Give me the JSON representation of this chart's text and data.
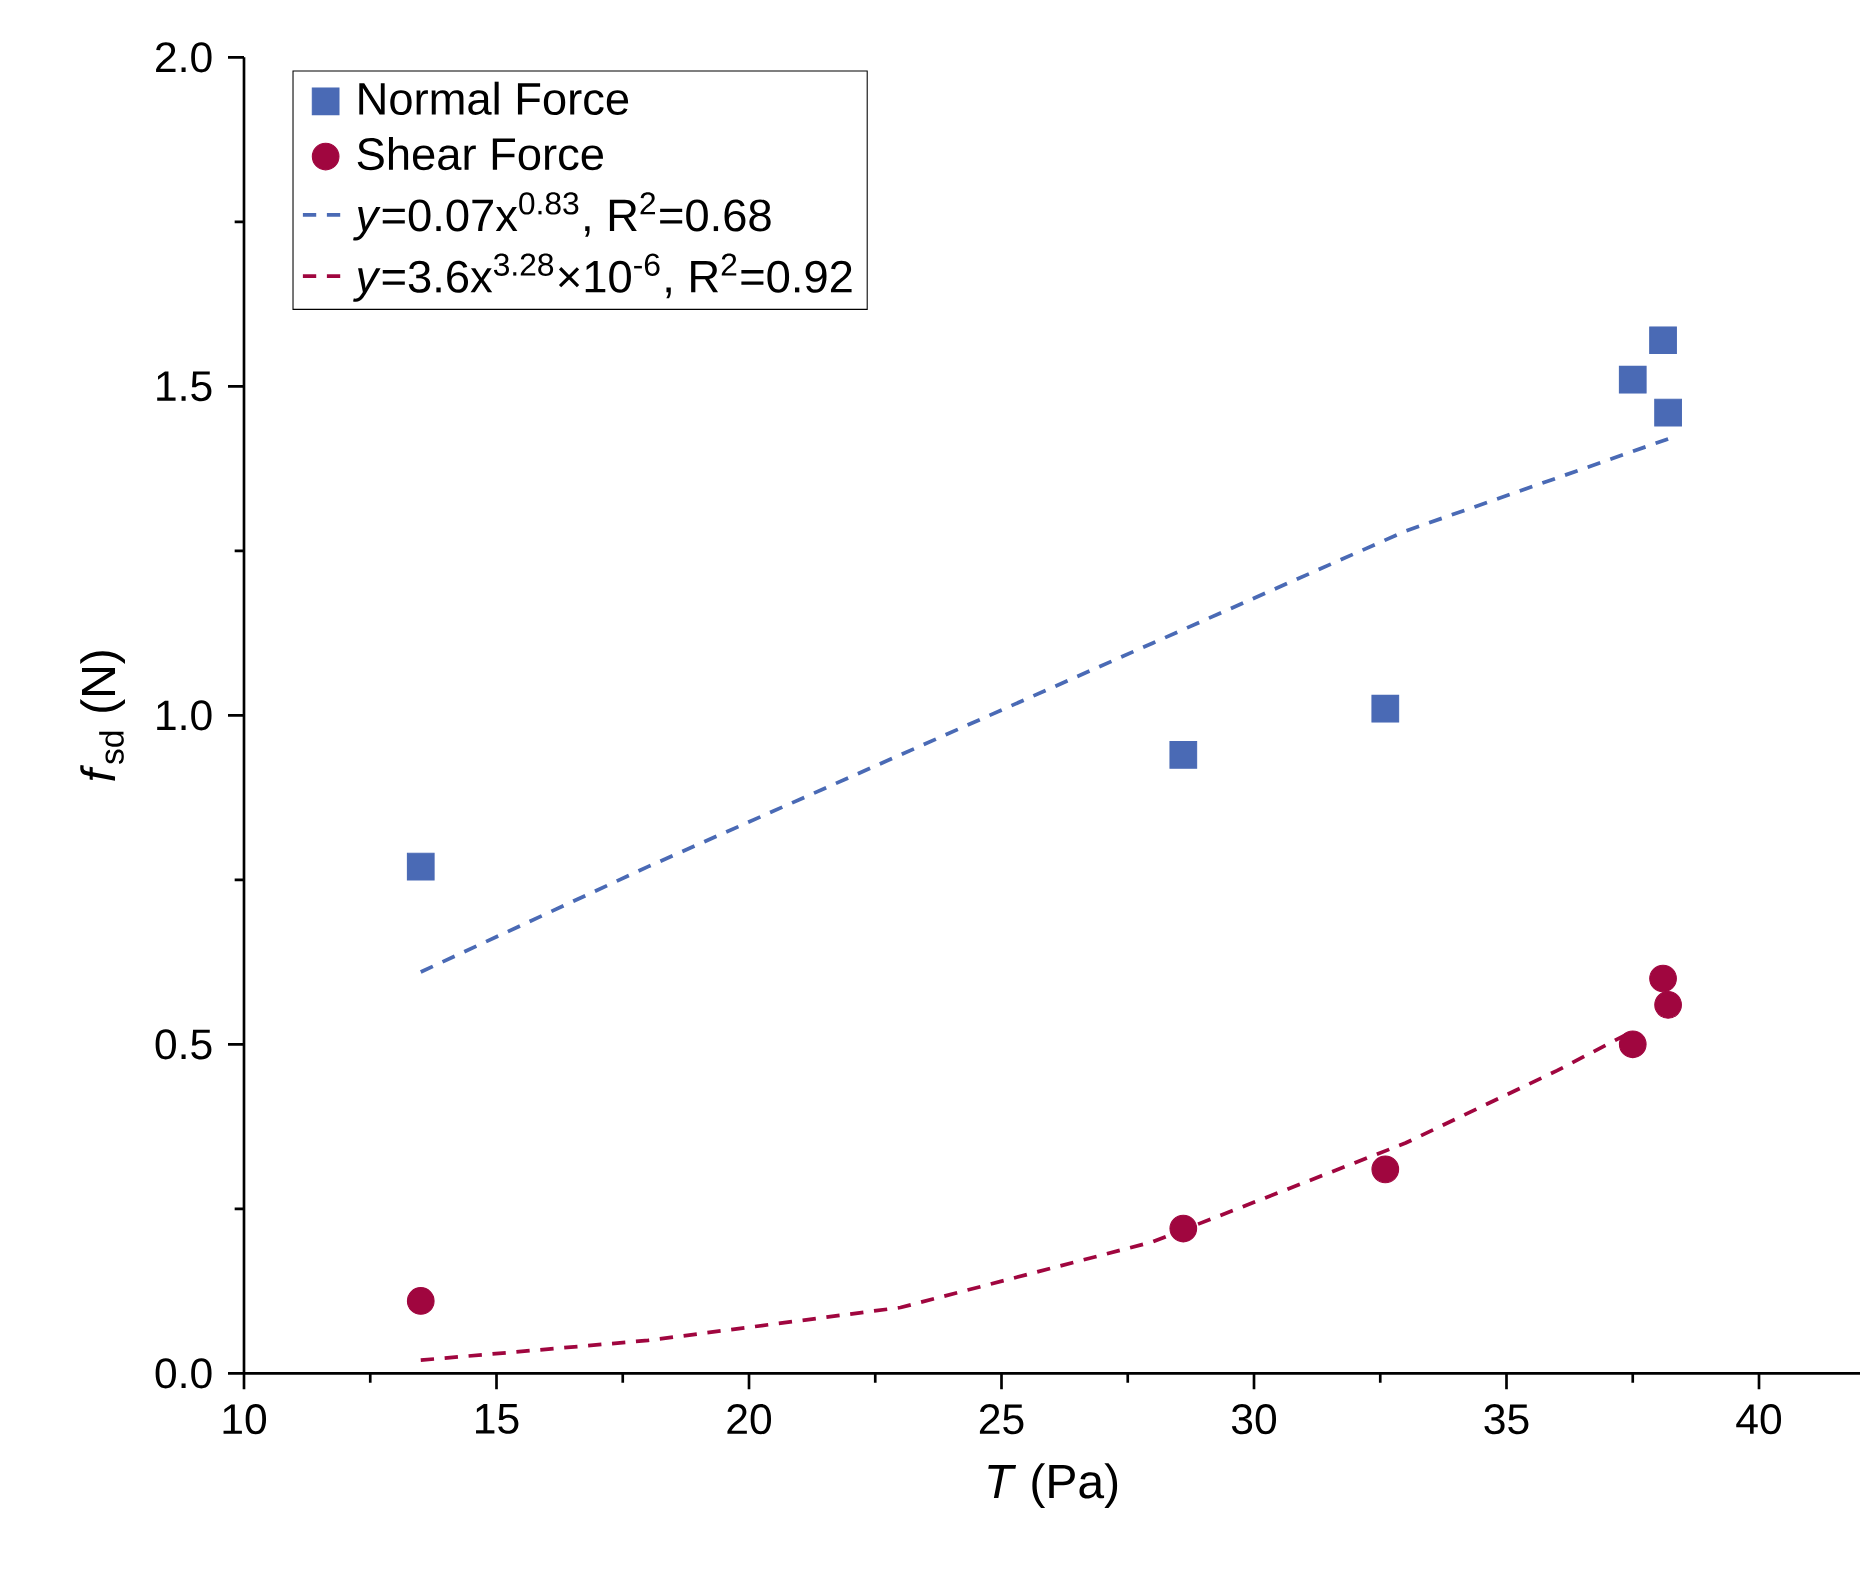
{
  "chart_data": {
    "type": "scatter",
    "xlabel": "*T* (Pa)",
    "ylabel": "*f*$_{sd}$ (N)",
    "xlim": [
      10,
      42
    ],
    "ylim": [
      0,
      2
    ],
    "xticks": [
      10,
      15,
      20,
      25,
      30,
      35,
      40
    ],
    "yticks": [
      {
        "value": 0,
        "label": "0.0"
      },
      0.5,
      {
        "value": 1,
        "label": "1.0"
      },
      1.5,
      {
        "value": 2,
        "label": "2.0"
      }
    ],
    "grid": false,
    "legend": "top left",
    "series": [
      {
        "name": "Normal Force",
        "marker": "square",
        "color": "#4a6ab5",
        "x": [
          13.5,
          28.6,
          32.6,
          37.5,
          38.1,
          38.2
        ],
        "values": [
          0.77,
          0.94,
          1.01,
          1.51,
          1.57,
          1.46
        ]
      },
      {
        "name": "Shear Force",
        "marker": "circle",
        "color": "#a0063f",
        "x": [
          13.5,
          28.6,
          32.6,
          37.5,
          38.1,
          38.2
        ],
        "values": [
          0.11,
          0.22,
          0.31,
          0.5,
          0.6,
          0.56
        ]
      },
      {
        "name": "*y*=0.07x$^{0.83}$, R$^{2}$=0.68",
        "type": "line",
        "line_style": "dashed",
        "color": "#4a6ab5",
        "x": [
          13.5,
          18,
          23,
          28,
          33,
          38.2
        ],
        "values": [
          0.61,
          0.77,
          0.94,
          1.11,
          1.28,
          1.42
        ]
      },
      {
        "name": "*y*=3.6x$^{3.28}$×10$^{-6}$, R$^{2}$=0.92",
        "type": "line",
        "line_style": "dashed",
        "color": "#a0063f",
        "x": [
          13.5,
          18,
          23,
          28,
          33,
          36,
          37.5
        ],
        "values": [
          0.02,
          0.05,
          0.1,
          0.2,
          0.35,
          0.46,
          0.52
        ]
      }
    ]
  }
}
